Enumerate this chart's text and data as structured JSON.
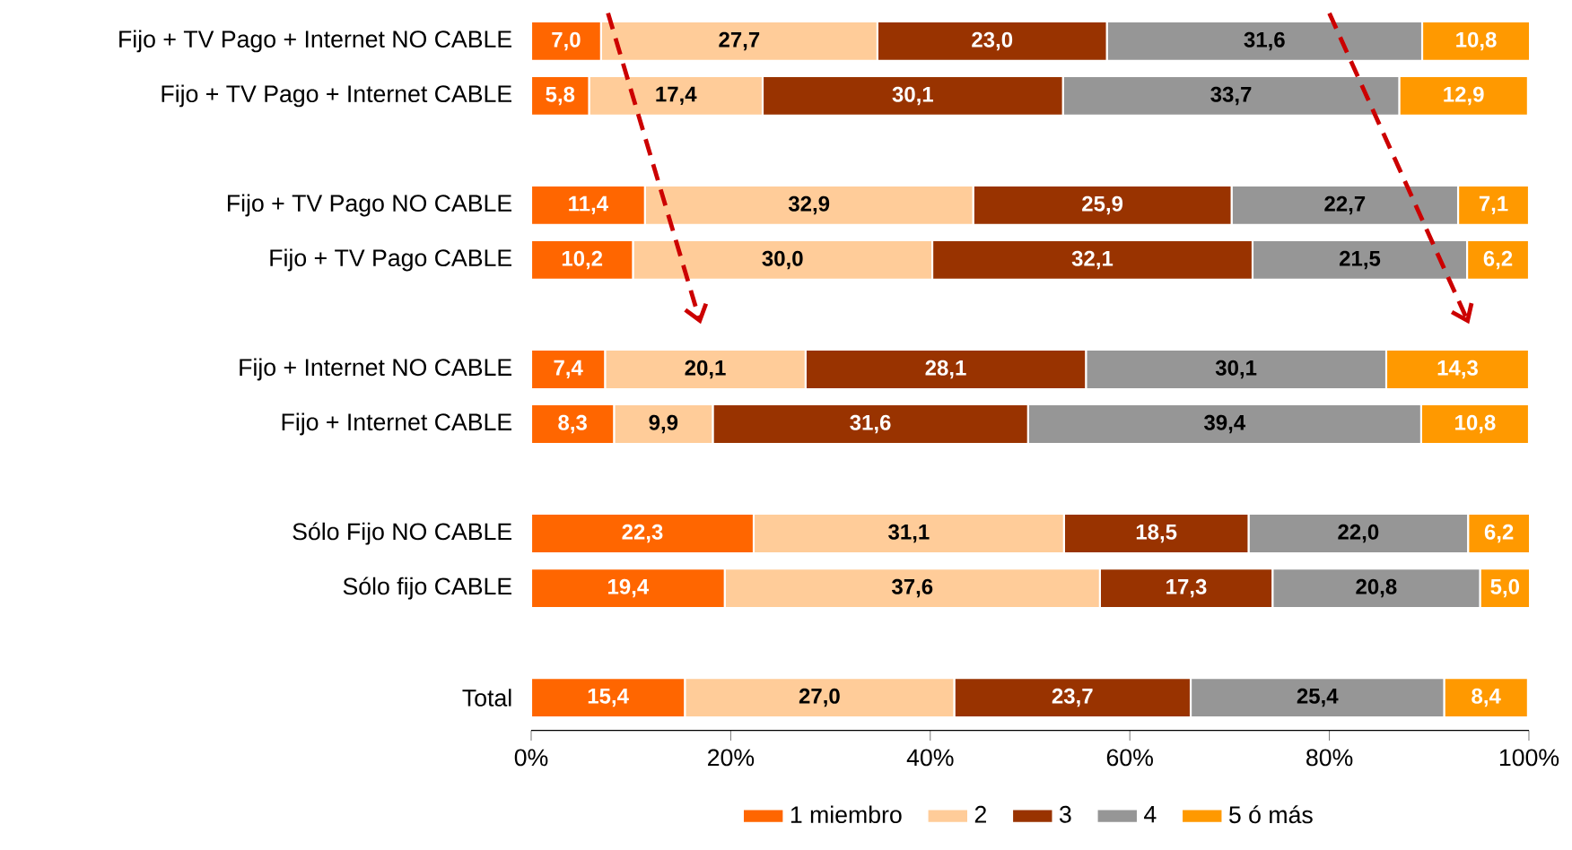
{
  "chart_data": {
    "type": "bar",
    "orientation": "horizontal",
    "stacked": true,
    "categories": [
      "Fijo + TV Pago + Internet NO CABLE",
      "Fijo + TV Pago + Internet CABLE",
      null,
      "Fijo + TV Pago NO CABLE",
      "Fijo + TV Pago CABLE",
      null,
      "Fijo + Internet NO CABLE",
      "Fijo + Internet CABLE",
      null,
      "Sólo Fijo NO CABLE",
      "Sólo fijo CABLE",
      null,
      "Total"
    ],
    "series": [
      {
        "name": "1 miembro",
        "color": "#ff6600",
        "values": [
          7.0,
          5.8,
          null,
          11.4,
          10.2,
          null,
          7.4,
          8.3,
          null,
          22.3,
          19.4,
          null,
          15.4
        ],
        "value_labels": [
          "7,0",
          "5,8",
          null,
          "11,4",
          "10,2",
          null,
          "7,4",
          "8,3",
          null,
          "22,3",
          "19,4",
          null,
          "15,4"
        ]
      },
      {
        "name": "2",
        "color": "#ffcc99",
        "values": [
          27.7,
          17.4,
          null,
          32.9,
          30.0,
          null,
          20.1,
          9.9,
          null,
          31.1,
          37.6,
          null,
          27.0
        ],
        "value_labels": [
          "27,7",
          "17,4",
          null,
          "32,9",
          "30,0",
          null,
          "20,1",
          "9,9",
          null,
          "31,1",
          "37,6",
          null,
          "27,0"
        ]
      },
      {
        "name": "3",
        "color": "#993300",
        "values": [
          23.0,
          30.1,
          null,
          25.9,
          32.1,
          null,
          28.1,
          31.6,
          null,
          18.5,
          17.3,
          null,
          23.7
        ],
        "value_labels": [
          "23,0",
          "30,1",
          null,
          "25,9",
          "32,1",
          null,
          "28,1",
          "31,6",
          null,
          "18,5",
          "17,3",
          null,
          "23,7"
        ]
      },
      {
        "name": "4",
        "color": "#969696",
        "values": [
          31.6,
          33.7,
          null,
          22.7,
          21.5,
          null,
          30.1,
          39.4,
          null,
          22.0,
          20.8,
          null,
          25.4
        ],
        "value_labels": [
          "31,6",
          "33,7",
          null,
          "22,7",
          "21,5",
          null,
          "30,1",
          "39,4",
          null,
          "22,0",
          "20,8",
          null,
          "25,4"
        ]
      },
      {
        "name": "5 ó más",
        "color": "#ff9900",
        "values": [
          10.8,
          12.9,
          null,
          7.1,
          6.2,
          null,
          14.3,
          10.8,
          null,
          6.2,
          5.0,
          null,
          8.4
        ],
        "value_labels": [
          "10,8",
          "12,9",
          null,
          "7,1",
          "6,2",
          null,
          "14,3",
          "10,8",
          null,
          "6,2",
          "5,0",
          null,
          "8,4"
        ]
      }
    ],
    "xlim": [
      0,
      100
    ],
    "xticks": [
      {
        "value": 0,
        "label": "0%"
      },
      {
        "value": 20,
        "label": "20%"
      },
      {
        "value": 40,
        "label": "40%"
      },
      {
        "value": 60,
        "label": "60%"
      },
      {
        "value": 80,
        "label": "80%"
      },
      {
        "value": 100,
        "label": "100%"
      }
    ],
    "legend": "bottom",
    "grid": false
  }
}
